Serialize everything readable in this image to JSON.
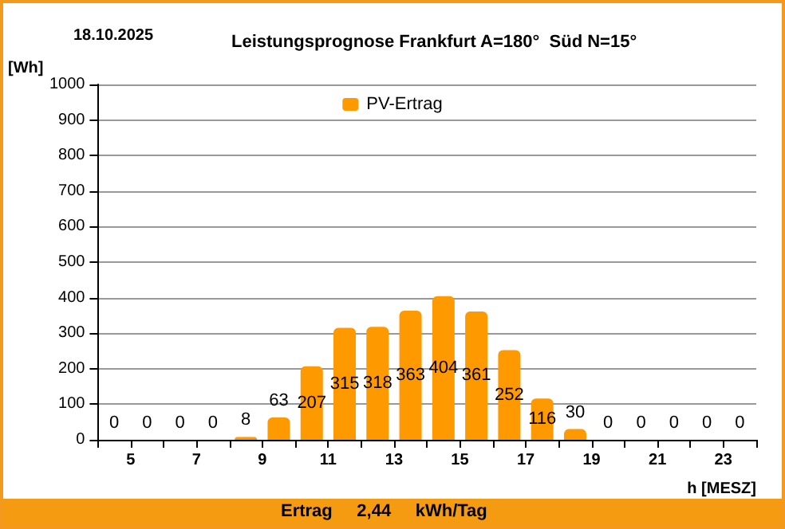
{
  "chart_data": {
    "type": "bar",
    "title": "Leistungsprognose Frankfurt A=180°  Süd N=15°",
    "annotations": [
      "18.10.2025",
      "Ertrag     2,44     kWh/Tag"
    ],
    "xlabel": "h [MESZ]",
    "ylabel": "[Wh]",
    "x": [
      4.5,
      5.5,
      6.5,
      7.5,
      8.5,
      9.5,
      10.5,
      11.5,
      12.5,
      13.5,
      14.5,
      15.5,
      16.5,
      17.5,
      18.5,
      19.5,
      20.5,
      21.5,
      22.5,
      23.5
    ],
    "series": [
      {
        "name": "PV-Ertrag",
        "color": "#ff9900",
        "values": [
          0,
          0,
          0,
          0,
          8,
          63,
          207,
          315,
          318,
          363,
          404,
          361,
          252,
          116,
          30,
          0,
          0,
          0,
          0,
          0
        ]
      }
    ],
    "xlim": [
      4,
      24
    ],
    "xticks": [
      {
        "value": 4,
        "label": null
      },
      5,
      {
        "value": 6,
        "label": null
      },
      7,
      {
        "value": 8,
        "label": null
      },
      9,
      {
        "value": 10,
        "label": null
      },
      11,
      {
        "value": 12,
        "label": null
      },
      13,
      {
        "value": 14,
        "label": null
      },
      15,
      {
        "value": 16,
        "label": null
      },
      17,
      {
        "value": 18,
        "label": null
      },
      19,
      {
        "value": 20,
        "label": null
      },
      21,
      {
        "value": 22,
        "label": null
      },
      23,
      {
        "value": 24,
        "label": null
      }
    ],
    "ylim": [
      0,
      1000
    ],
    "yticks": [
      0,
      100,
      200,
      300,
      400,
      500,
      600,
      700,
      800,
      900,
      1000
    ],
    "grid": "y",
    "legend": "top",
    "data_labels": true
  }
}
